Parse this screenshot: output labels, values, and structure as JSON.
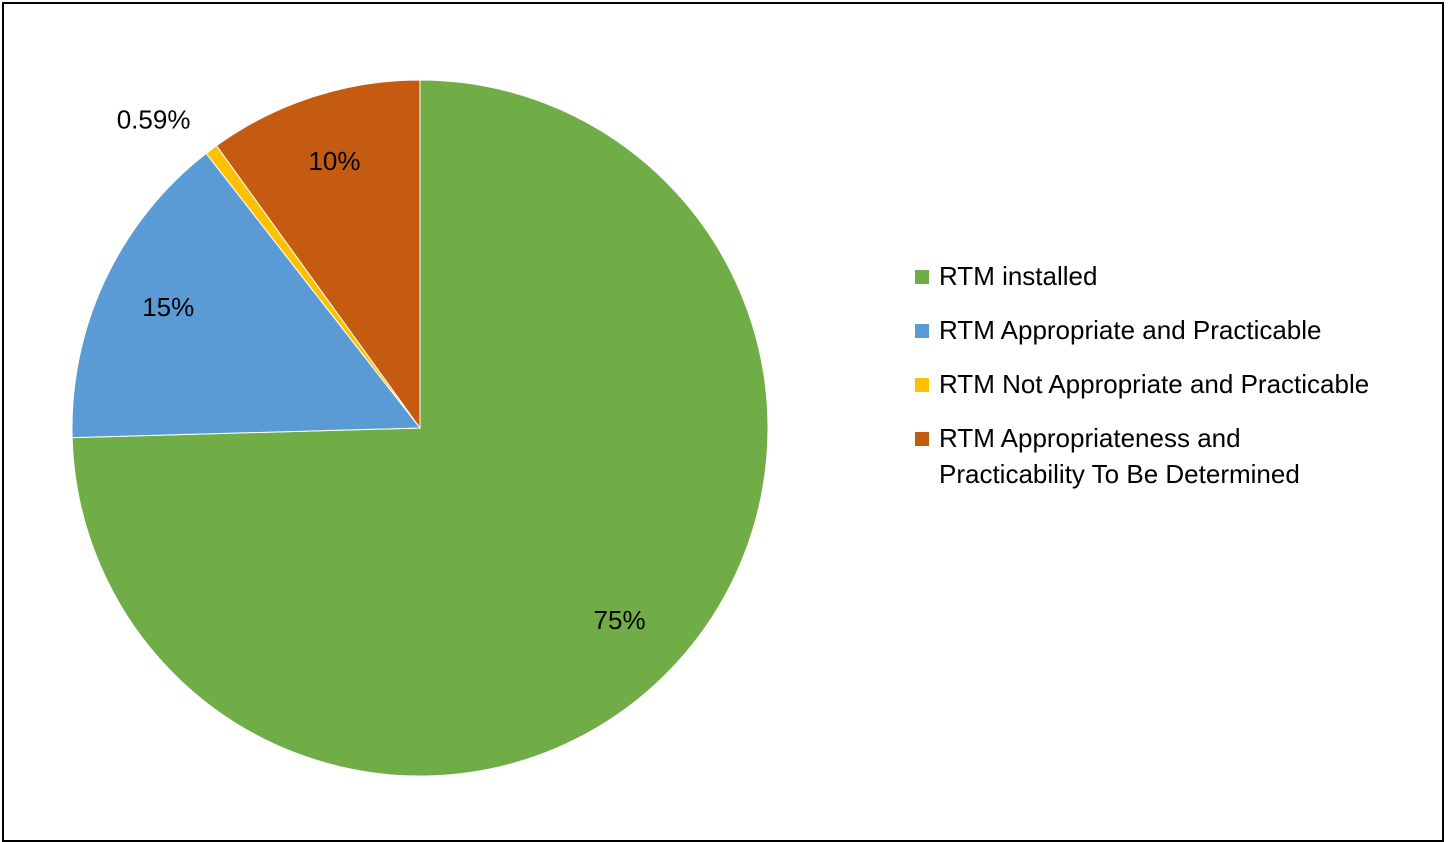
{
  "chart_data": {
    "type": "pie",
    "categories": [
      "RTM installed",
      "RTM Appropriate and Practicable",
      "RTM Not Appropriate and Practicable",
      "RTM Appropriateness and Practicability To Be Determined"
    ],
    "values": [
      75,
      15,
      0.59,
      10
    ],
    "value_labels": [
      "75%",
      "15%",
      "0.59%",
      "10%"
    ],
    "colors": [
      "#70ad47",
      "#5b9bd5",
      "#ffc000",
      "#c55a11"
    ],
    "legend": "right"
  }
}
